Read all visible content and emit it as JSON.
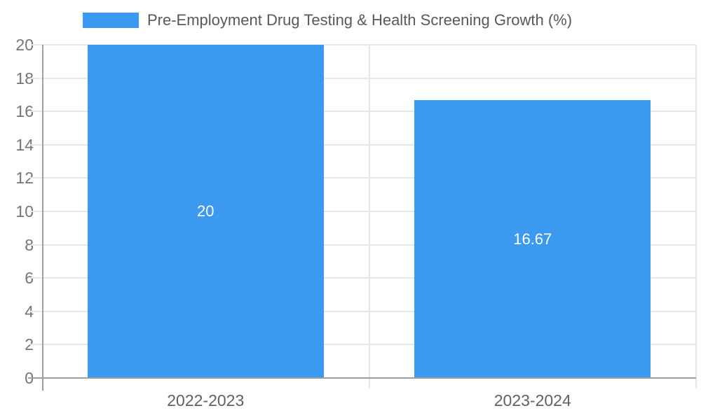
{
  "chart_data": {
    "type": "bar",
    "title": "Pre-Employment Drug Testing & Health Screening Growth (%)",
    "categories": [
      "2022-2023",
      "2023-2024"
    ],
    "values": [
      20,
      16.67
    ],
    "value_labels": [
      "20",
      "16.67"
    ],
    "xlabel": "",
    "ylabel": "",
    "ylim": [
      0,
      20
    ],
    "ytick_step": 2,
    "grid": true,
    "legend_position": "top",
    "colors": {
      "bar": "#3b99f0",
      "grid": "#e6e6e6",
      "axis": "#9e9e9e",
      "tick_label": "#757575",
      "category_label": "#616161",
      "title": "#595959",
      "value_label": "#ffffff",
      "background": "#ffffff"
    }
  }
}
